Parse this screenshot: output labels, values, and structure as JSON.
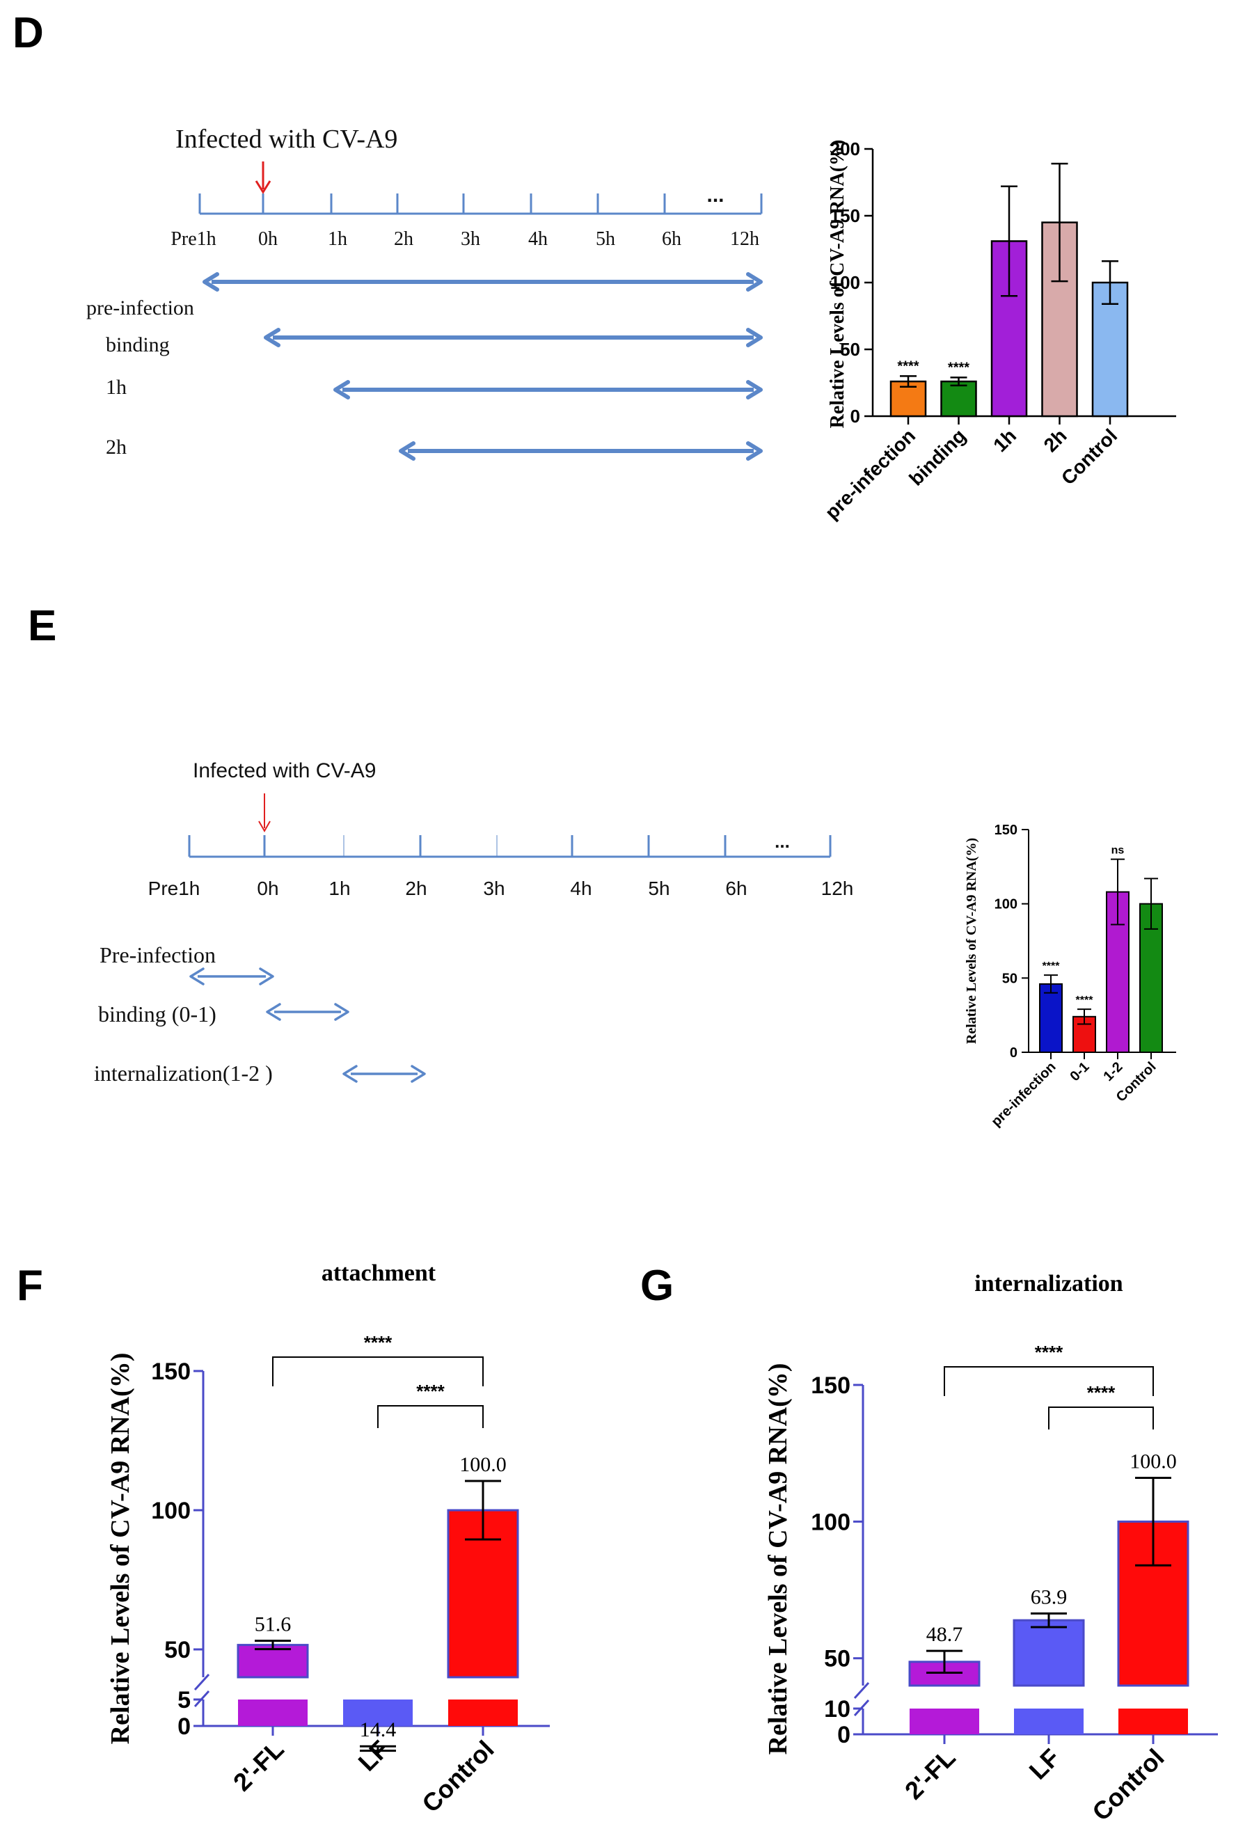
{
  "panels": {
    "d": "D",
    "e": "E",
    "f": "F",
    "g": "G"
  },
  "timeline_d": {
    "title": "Infected with CV-A9",
    "ticks": [
      "Pre1h",
      "0h",
      "1h",
      "2h",
      "3h",
      "4h",
      "5h",
      "6h",
      "12h"
    ],
    "ellipsis": "...",
    "treatments": [
      "pre-infection",
      "binding",
      "1h",
      "2h"
    ],
    "line_color": "#5b87c9",
    "marker_color": "#e02020"
  },
  "timeline_e": {
    "title": "Infected with CV-A9",
    "ticks": [
      "Pre1h",
      "0h",
      "1h",
      "2h",
      "3h",
      "4h",
      "5h",
      "6h",
      "12h"
    ],
    "ellipsis": "...",
    "treatments": [
      "Pre-infection",
      "binding (0-1)",
      "internalization(1-2 )"
    ],
    "line_color": "#5b87c9",
    "marker_color": "#e02020"
  },
  "chart_data": [
    {
      "id": "D",
      "type": "bar",
      "title": "",
      "ylabel": "Relative Levels of CV-A9 RNA(%)",
      "ylim": [
        0,
        200
      ],
      "yticks": [
        0,
        50,
        100,
        150,
        200
      ],
      "categories": [
        "pre-infection",
        "binding",
        "1h",
        "2h",
        "Control"
      ],
      "values": [
        26,
        26,
        131,
        145,
        100
      ],
      "errors": [
        4,
        3,
        41,
        44,
        16
      ],
      "colors": [
        "#f47a14",
        "#138a13",
        "#a21fd8",
        "#d8aaaa",
        "#8ab8f0"
      ],
      "significance": [
        "****",
        "****",
        "",
        "",
        ""
      ]
    },
    {
      "id": "E",
      "type": "bar",
      "title": "",
      "ylabel": "Relative Levels of CV-A9 RNA(%)",
      "ylim": [
        0,
        150
      ],
      "yticks": [
        0,
        50,
        100,
        150
      ],
      "categories": [
        "pre-infection",
        "0-1",
        "1-2",
        "Control"
      ],
      "values": [
        46,
        24,
        108,
        100
      ],
      "errors": [
        6,
        5,
        22,
        17
      ],
      "colors": [
        "#0a14c8",
        "#ee1010",
        "#b01ad0",
        "#138a13"
      ],
      "significance": [
        "****",
        "****",
        "ns",
        ""
      ]
    },
    {
      "id": "F",
      "type": "bar",
      "title": "attachment",
      "ylabel": "Relative Levels of CV-A9 RNA(%)",
      "ylim": [
        0,
        150
      ],
      "axis_break": [
        5,
        40
      ],
      "yticks": [
        0,
        5,
        50,
        100,
        150
      ],
      "categories": [
        "2'-FL",
        "LF",
        "Control"
      ],
      "values": [
        51.6,
        14.4,
        100.0
      ],
      "value_labels": [
        "51.6",
        "14.4",
        "100.0"
      ],
      "errors": [
        1.5,
        0.8,
        10.5
      ],
      "colors": [
        "#b41ad8",
        "#5a5af5",
        "#ff0a0a"
      ],
      "comparisons": [
        {
          "from": 0,
          "to": 2,
          "label": "****"
        },
        {
          "from": 1,
          "to": 2,
          "label": "****"
        }
      ]
    },
    {
      "id": "G",
      "type": "bar",
      "title": "internalization",
      "ylabel": "Relative Levels of CV-A9 RNA(%)",
      "ylim": [
        0,
        150
      ],
      "axis_break": [
        10,
        40
      ],
      "yticks": [
        0,
        10,
        50,
        100,
        150
      ],
      "categories": [
        "2'-FL",
        "LF",
        "Control"
      ],
      "values": [
        48.7,
        63.9,
        100.0
      ],
      "value_labels": [
        "48.7",
        "63.9",
        "100.0"
      ],
      "errors": [
        4.0,
        2.5,
        16
      ],
      "colors": [
        "#b41ad8",
        "#5a5af5",
        "#ff0a0a"
      ],
      "comparisons": [
        {
          "from": 0,
          "to": 2,
          "label": "****"
        },
        {
          "from": 1,
          "to": 2,
          "label": "****"
        }
      ]
    }
  ]
}
